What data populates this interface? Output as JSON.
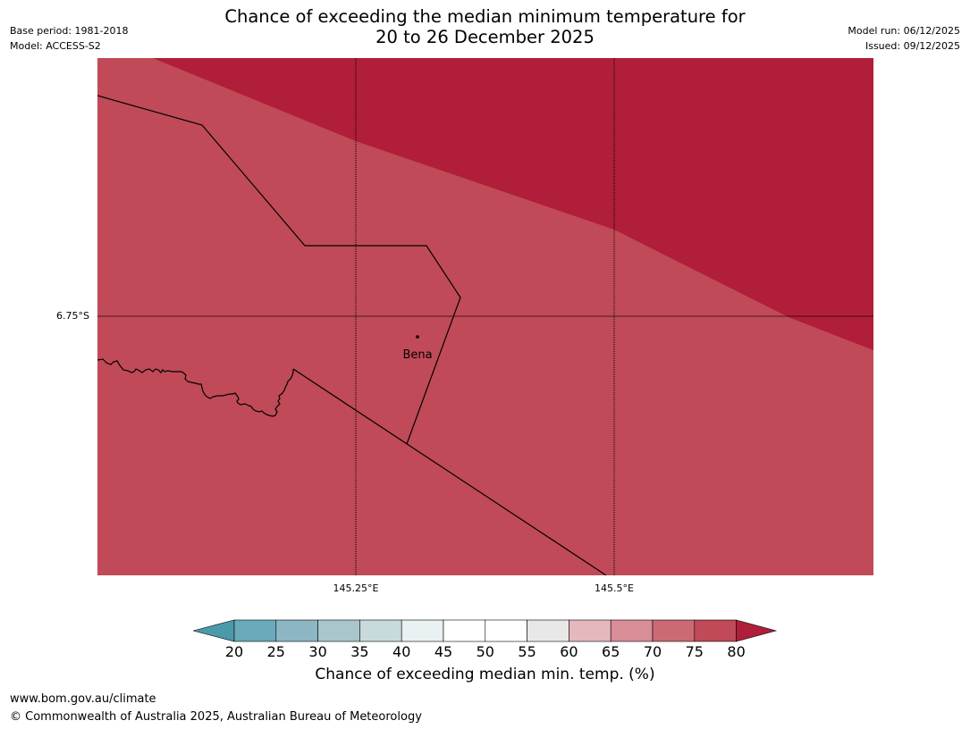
{
  "header": {
    "title_line1": "Chance of exceeding the median minimum temperature for",
    "title_line2": "20 to 26 December 2025",
    "base_period": "Base period: 1981-2018",
    "model": "Model: ACCESS-S2",
    "model_run": "Model run: 06/12/2025",
    "issued": "Issued: 09/12/2025"
  },
  "map": {
    "place_label": "Bena",
    "latitude_label": "6.75°S",
    "longitude_labels": [
      "145.25°E",
      "145.5°E"
    ],
    "region_colors": {
      "category_75_80": "#c04a57",
      "category_above_80": "#b01e39"
    }
  },
  "colorbar": {
    "title": "Chance of exceeding median min. temp. (%)",
    "ticks": [
      "20",
      "25",
      "30",
      "35",
      "40",
      "45",
      "50",
      "55",
      "60",
      "65",
      "70",
      "75",
      "80"
    ],
    "under_color": "#4a9aab",
    "over_color": "#b01e39",
    "bin_colors": [
      "#6aaaba",
      "#8cb6c3",
      "#a8c6cc",
      "#c9dadc",
      "#e9f1f2",
      "#ffffff",
      "#ffffff",
      "#e8e8e8",
      "#e4b8bc",
      "#d98d96",
      "#cc6a74",
      "#c04a57"
    ]
  },
  "footer": {
    "website": "www.bom.gov.au/climate",
    "copyright": "© Commonwealth of Australia 2025, Australian Bureau of Meteorology"
  }
}
